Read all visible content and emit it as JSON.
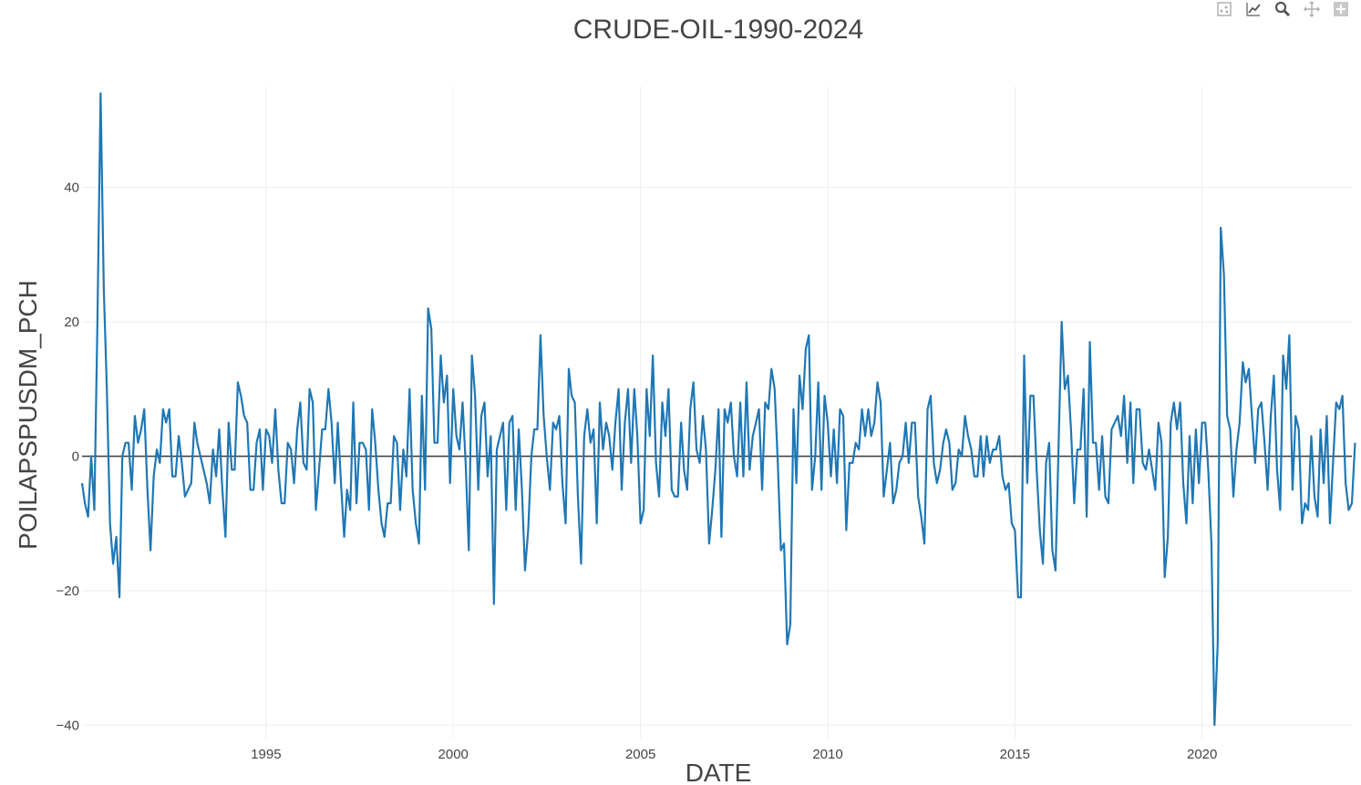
{
  "modebar": [
    {
      "name": "download-plot-icon",
      "title": "Download plot as a png"
    },
    {
      "name": "line-tool-icon",
      "title": "Draw line"
    },
    {
      "name": "zoom-icon",
      "title": "Zoom"
    },
    {
      "name": "pan-icon",
      "title": "Pan"
    },
    {
      "name": "zoom-in-icon",
      "title": "Zoom in"
    }
  ],
  "colors": {
    "line": "#1f77b4",
    "grid": "#eeeeee",
    "zero": "#444444",
    "text": "#444444",
    "title": "#444444"
  },
  "chart_data": {
    "type": "line",
    "title": "CRUDE-OIL-1990-2024",
    "xlabel": "DATE",
    "ylabel": "POILAPSPUSDM_PCH",
    "xlim": [
      "1990-02-01",
      "2024-01-01"
    ],
    "ylim": [
      -42,
      55
    ],
    "xticks": [
      "1995",
      "2000",
      "2005",
      "2010",
      "2015",
      "2020"
    ],
    "yticks": [
      40,
      20,
      0,
      -20,
      -40
    ],
    "ytick_labels": [
      "40",
      "20",
      "0",
      "−20",
      "−40"
    ],
    "grid": true,
    "x_start": "1990-02",
    "x_step": "monthly",
    "series": [
      {
        "values": [
          -4,
          -7,
          -9,
          0,
          -8,
          20,
          54,
          25,
          10,
          -10,
          -16,
          -12,
          -21,
          0,
          2,
          2,
          -5,
          6,
          2,
          4,
          7,
          -5,
          -14,
          -3,
          1,
          -1,
          7,
          5,
          7,
          -3,
          -3,
          3,
          -1,
          -6,
          -5,
          -4,
          5,
          2,
          0,
          -2,
          -4,
          -7,
          1,
          -3,
          4,
          -5,
          -12,
          5,
          -2,
          -2,
          11,
          9,
          6,
          5,
          -5,
          -5,
          2,
          4,
          -5,
          4,
          3,
          -1,
          7,
          -2,
          -7,
          -7,
          2,
          1,
          -4,
          4,
          8,
          -1,
          -2,
          10,
          8,
          -8,
          -2,
          4,
          4,
          10,
          5,
          -4,
          5,
          -4,
          -12,
          -5,
          -8,
          8,
          -7,
          2,
          2,
          1,
          -8,
          7,
          2,
          -5,
          -10,
          -12,
          -7,
          -7,
          3,
          2,
          -8,
          1,
          -3,
          10,
          -5,
          -10,
          -13,
          9,
          -5,
          22,
          19,
          2,
          2,
          15,
          8,
          12,
          -4,
          10,
          3,
          1,
          8,
          -1,
          -14,
          15,
          9,
          -5,
          6,
          8,
          -3,
          3,
          -22,
          1,
          3,
          5,
          -8,
          5,
          6,
          -8,
          4,
          -5,
          -17,
          -11,
          0,
          4,
          4,
          18,
          6,
          0,
          -5,
          5,
          4,
          6,
          -4,
          -10,
          13,
          9,
          8,
          -6,
          -16,
          3,
          7,
          2,
          4,
          -10,
          8,
          1,
          5,
          3,
          -2,
          5,
          10,
          -5,
          5,
          10,
          -1,
          10,
          3,
          -10,
          -8,
          10,
          3,
          15,
          -1,
          -6,
          8,
          3,
          10,
          -5,
          -6,
          -6,
          5,
          -2,
          -5,
          7,
          11,
          1,
          -1,
          6,
          1,
          -13,
          -8,
          -2,
          7,
          -12,
          7,
          5,
          8,
          0,
          -3,
          8,
          -3,
          11,
          -2,
          3,
          5,
          7,
          -5,
          8,
          7,
          13,
          10,
          -1,
          -14,
          -13,
          -28,
          -25,
          7,
          -4,
          12,
          7,
          16,
          18,
          -5,
          0,
          11,
          -5,
          9,
          5,
          -3,
          4,
          -4,
          7,
          6,
          -11,
          -1,
          -1,
          2,
          1,
          7,
          3,
          7,
          3,
          5,
          11,
          8,
          -6,
          -2,
          2,
          -7,
          -5,
          -1,
          0,
          5,
          -1,
          5,
          5,
          -6,
          -9,
          -13,
          7,
          9,
          -1,
          -4,
          -2,
          2,
          4,
          2,
          -5,
          -4,
          1,
          0,
          6,
          3,
          1,
          -3,
          -3,
          3,
          -3,
          3,
          -1,
          1,
          1,
          3,
          -3,
          -5,
          -4,
          -10,
          -11,
          -21,
          -21,
          15,
          -4,
          9,
          9,
          -2,
          -11,
          -16,
          -1,
          2,
          -14,
          -17,
          1,
          20,
          10,
          12,
          4,
          -7,
          1,
          1,
          10,
          -9,
          17,
          2,
          2,
          -5,
          3,
          -6,
          -7,
          4,
          5,
          6,
          3,
          9,
          -1,
          8,
          -4,
          7,
          7,
          -1,
          -2,
          1,
          -2,
          -5,
          5,
          2,
          -18,
          -12,
          5,
          8,
          4,
          8,
          -4,
          -10,
          3,
          -7,
          4,
          -4,
          5,
          5,
          -2,
          -13,
          -40,
          -28,
          34,
          27,
          6,
          4,
          -6,
          1,
          5,
          14,
          11,
          13,
          6,
          -1,
          7,
          8,
          2,
          -5,
          6,
          12,
          -2,
          -8,
          15,
          10,
          18,
          -5,
          6,
          4,
          -10,
          -7,
          -8,
          3,
          -6,
          -9,
          4,
          -4,
          6,
          -10,
          -1,
          8,
          7,
          9,
          -4,
          -8,
          -7,
          2
        ]
      }
    ]
  }
}
